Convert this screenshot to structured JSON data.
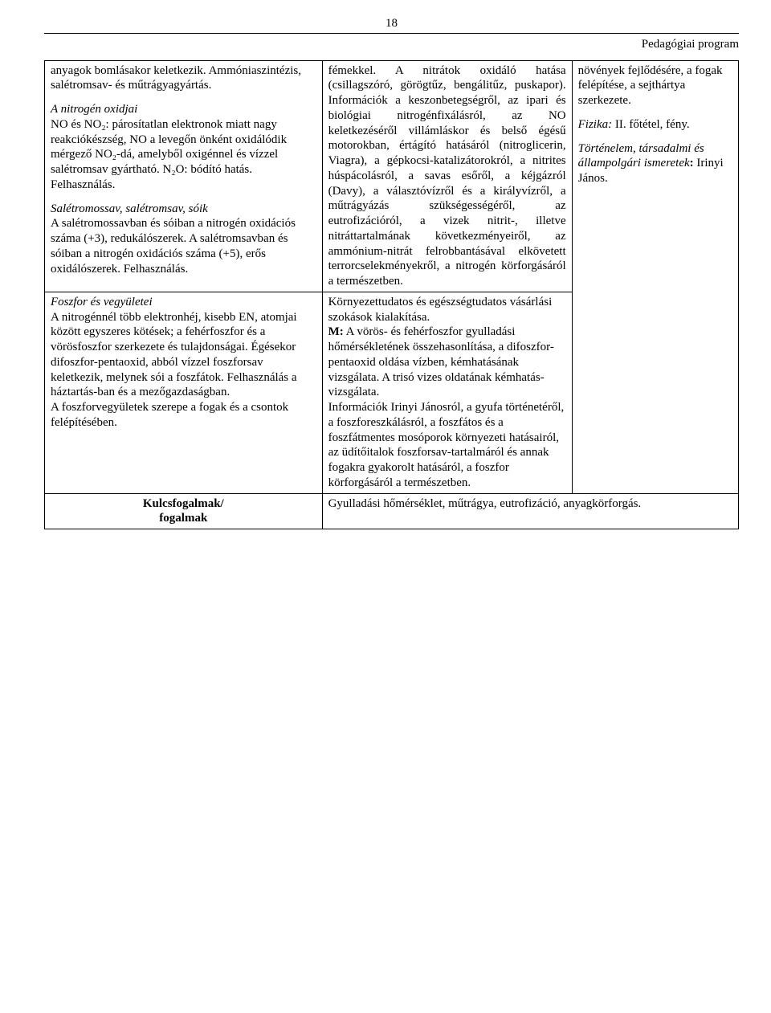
{
  "page_number": "18",
  "header_title": "Pedagógiai program",
  "row1": {
    "col1": {
      "p1": "anyagok bomlásakor keletkezik. Ammóniaszintézis, salétromsav- és műtrágyagyártás.",
      "p2_title": "A nitrogén oxidjai",
      "p2_body": "NO és NO₂: párosítatlan elektronok miatt nagy reakciókészség, NO a levegőn önként oxidálódik mérgező NO₂-dá, amelyből oxigénnel és vízzel salétromsav gyártható. N₂O: bódító hatás. Felhasználás.",
      "p3_title": "Salétromossav, salétromsav, sóik",
      "p3_body": "A salétromossavban és sóiban a nitrogén oxidációs száma (+3), redukálószerek. A salétromsavban és sóiban a nitrogén oxidációs száma (+5), erős oxidálószerek. Felhasználás."
    },
    "col2": "fémekkel. A nitrátok oxidáló hatása (csillagszóró, görögtűz, bengálitűz, puskapor). Információk a keszonbetegségről, az ipari és biológiai nitrogénfixálásról, az NO keletkezéséről villámláskor és belső égésű motorokban, értágító hatásáról (nitroglicerin, Viagra), a gépkocsi-katalizátorokról, a nitrites húspácolásról, a savas esőről, a kéjgázról (Davy), a választóvízről és a királyvízről, a műtrágyázás szükségességéről, az eutrofizációról, a vizek nitrit-, illetve nitráttartalmának következményeiről, az ammónium-nitrát felrobbantásával elkövetett terrorcselekményekről, a nitrogén körforgásáról a természetben.",
    "col3": {
      "p1": "növények fejlődésére, a fogak felépítése, a sejthártya szerkezete.",
      "p2_pre": "Fizika:",
      "p2_post": " II. főtétel, fény.",
      "p3_pre": "Történelem, társadalmi és állampolgári ismeretek",
      "p3_sep": ": ",
      "p3_post": "Irinyi János."
    }
  },
  "row2": {
    "col1_title": "Foszfor és vegyületei",
    "col1_body": "A nitrogénnél több elektronhéj, kisebb EN, atomjai között egyszeres kötések; a fehérfoszfor és a vörösfoszfor szerkezete és tulajdonságai. Égésekor difoszfor-pentaoxid, abból vízzel foszforsav keletkezik, melynek sói a foszfátok. Felhasználás a háztartás-ban és a mezőgazdaságban.",
    "col1_body2": "A foszforvegyületek szerepe a fogak és a csontok felépítésében.",
    "col2_p1": "Környezettudatos és egészségtudatos vásárlási szokások kialakítása.",
    "col2_m": "M:",
    "col2_p2": " A vörös- és fehérfoszfor gyulladási hőmérsékletének összehasonlítása, a difoszfor-pentaoxid oldása vízben, kémhatásának vizsgálata. A trisó vizes oldatának kémhatás-vizsgálata.",
    "col2_p3": "Információk Irinyi Jánosról, a gyufa történetéről, a foszforeszkálásról, a foszfátos és a foszfátmentes mosóporok környezeti hatásairól, az üdítőitalok foszforsav-tartalmáról és annak fogakra gyakorolt hatásáról, a foszfor körforgásáról a természetben."
  },
  "key_row": {
    "label_line1": "Kulcsfogalmak/",
    "label_line2": "fogalmak",
    "value": "Gyulladási hőmérséklet, műtrágya, eutrofizáció, anyagkörforgás."
  }
}
